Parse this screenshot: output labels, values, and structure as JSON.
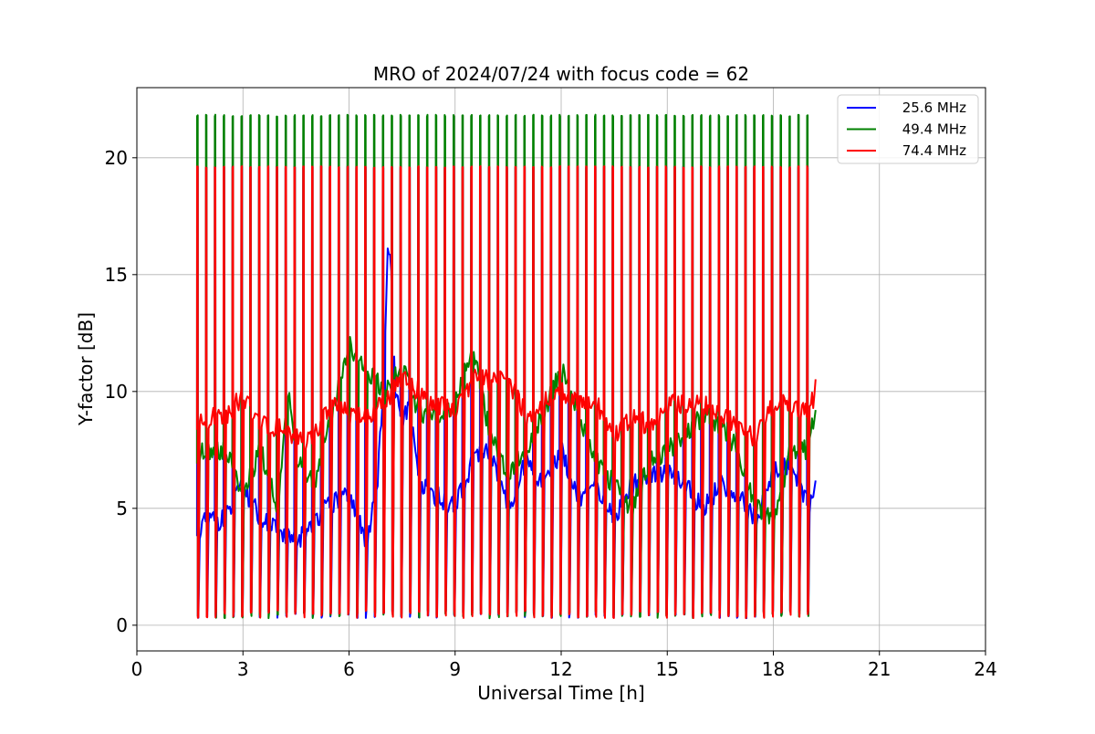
{
  "chart_data": {
    "type": "line",
    "title": "MRO of 2024/07/24 with focus code = 62",
    "xlabel": "Universal Time [h]",
    "ylabel": "Y-factor [dB]",
    "xlim": [
      0,
      24
    ],
    "ylim": [
      -1.1,
      23.0
    ],
    "xticks": [
      0,
      3,
      6,
      9,
      12,
      15,
      18,
      21,
      24
    ],
    "yticks": [
      0,
      5,
      10,
      15,
      20
    ],
    "grid": true,
    "legend_position": "top-right",
    "calibration_cycle": {
      "description_hidden": true,
      "start_h": 1.7,
      "end_h": 19.15,
      "period_h": 0.25,
      "high_levels_db": {
        "25.6 MHz": 19.6,
        "49.4 MHz": 21.8,
        "74.4 MHz": 19.6
      },
      "low_level_db": 0.3
    },
    "series": [
      {
        "name": "25.6 MHz",
        "color": "#0000ff",
        "x": [
          1.7,
          2.0,
          2.5,
          3.0,
          3.5,
          4.0,
          4.5,
          5.0,
          5.5,
          6.0,
          6.5,
          6.8,
          7.0,
          7.1,
          7.2,
          7.3,
          7.5,
          7.7,
          8.0,
          8.5,
          9.0,
          9.5,
          10.0,
          10.5,
          11.0,
          11.5,
          12.0,
          12.5,
          13.0,
          13.5,
          14.0,
          14.5,
          15.0,
          15.5,
          16.0,
          16.5,
          17.0,
          17.5,
          18.0,
          18.5,
          19.0,
          19.25
        ],
        "y": [
          4.0,
          4.5,
          4.5,
          6.0,
          4.5,
          4.0,
          3.5,
          4.5,
          5.2,
          5.5,
          3.5,
          6.0,
          11.0,
          16.5,
          15.0,
          10.0,
          8.5,
          9.5,
          6.0,
          5.5,
          5.0,
          7.0,
          7.5,
          5.0,
          7.0,
          6.0,
          7.5,
          5.5,
          6.0,
          4.5,
          6.0,
          6.5,
          6.5,
          6.0,
          5.0,
          6.0,
          5.5,
          4.5,
          6.5,
          7.0,
          5.0,
          6.6
        ]
      },
      {
        "name": "49.4 MHz",
        "color": "#008000",
        "x": [
          1.7,
          2.0,
          2.5,
          3.0,
          3.5,
          4.0,
          4.3,
          4.5,
          5.0,
          5.5,
          6.0,
          6.5,
          7.0,
          7.5,
          8.0,
          8.5,
          9.0,
          9.5,
          10.0,
          10.5,
          11.0,
          11.5,
          12.0,
          12.5,
          13.0,
          13.5,
          14.0,
          14.5,
          15.0,
          15.5,
          16.0,
          16.5,
          17.0,
          17.5,
          18.0,
          18.5,
          19.0,
          19.25
        ],
        "y": [
          7.2,
          7.5,
          7.5,
          5.5,
          7.5,
          5.0,
          10.5,
          7.0,
          6.0,
          9.0,
          12.0,
          11.0,
          10.0,
          11.0,
          9.0,
          9.0,
          9.5,
          12.0,
          8.0,
          6.5,
          7.5,
          9.0,
          11.0,
          9.0,
          7.0,
          6.0,
          5.0,
          7.0,
          7.5,
          8.0,
          9.0,
          8.5,
          7.5,
          5.0,
          4.5,
          7.5,
          7.5,
          10.0
        ]
      },
      {
        "name": "74.4 MHz",
        "color": "#ff0000",
        "x": [
          1.7,
          2.0,
          2.5,
          3.0,
          3.5,
          4.0,
          4.5,
          5.0,
          5.5,
          6.0,
          6.5,
          7.0,
          7.5,
          8.0,
          8.5,
          9.0,
          9.5,
          10.0,
          10.5,
          11.0,
          11.5,
          12.0,
          12.5,
          13.0,
          13.5,
          14.0,
          14.5,
          15.0,
          15.5,
          16.0,
          16.5,
          17.0,
          17.5,
          18.0,
          18.5,
          19.0,
          19.25
        ],
        "y": [
          8.5,
          8.8,
          9.0,
          9.8,
          8.5,
          8.5,
          8.0,
          8.0,
          9.5,
          9.0,
          9.0,
          9.5,
          10.5,
          10.0,
          9.5,
          9.0,
          10.5,
          10.5,
          10.5,
          9.0,
          9.5,
          10.0,
          9.5,
          9.5,
          8.0,
          9.0,
          8.5,
          9.5,
          9.5,
          9.5,
          9.0,
          8.5,
          8.0,
          9.5,
          9.5,
          9.0,
          10.4
        ]
      }
    ]
  }
}
